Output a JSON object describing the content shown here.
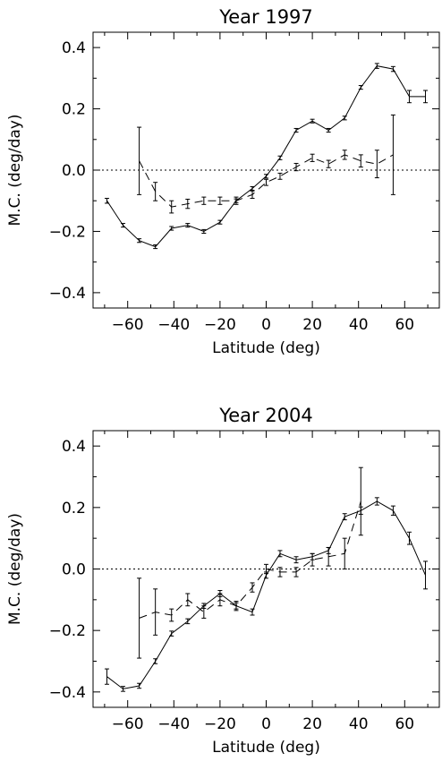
{
  "chart_data": [
    {
      "type": "line",
      "title": "Year 1997",
      "xlabel": "Latitude (deg)",
      "ylabel": "M.C. (deg/day)",
      "xlim": [
        -75,
        75
      ],
      "ylim": [
        -0.45,
        0.45
      ],
      "xticks": [
        -60,
        -40,
        -20,
        0,
        20,
        40,
        60
      ],
      "yticks": [
        -0.4,
        -0.2,
        0.0,
        0.2,
        0.4
      ],
      "xtick_labels": [
        "−60",
        "−40",
        "−20",
        "0",
        "20",
        "40",
        "60"
      ],
      "ytick_labels": [
        "−0.4",
        "−0.2",
        "0.0",
        "0.2",
        "0.4"
      ],
      "grid": false,
      "reference_line": {
        "y": 0,
        "style": "dotted"
      },
      "series": [
        {
          "style": "solid",
          "x": [
            -69,
            -62,
            -55,
            -48,
            -41,
            -34,
            -27,
            -20,
            -13,
            -6,
            0,
            6,
            13,
            20,
            27,
            34,
            41,
            48,
            55,
            62,
            69
          ],
          "y": [
            -0.1,
            -0.18,
            -0.23,
            -0.25,
            -0.19,
            -0.18,
            -0.2,
            -0.17,
            -0.1,
            -0.06,
            -0.02,
            0.04,
            0.13,
            0.16,
            0.13,
            0.17,
            0.27,
            0.34,
            0.33,
            0.24,
            0.24
          ],
          "err": [
            0.008,
            0.006,
            0.006,
            0.006,
            0.006,
            0.006,
            0.006,
            0.006,
            0.006,
            0.006,
            0.006,
            0.006,
            0.006,
            0.006,
            0.006,
            0.006,
            0.006,
            0.008,
            0.008,
            0.02,
            0.02
          ]
        },
        {
          "style": "dashed",
          "x": [
            -55,
            -48,
            -41,
            -34,
            -27,
            -20,
            -13,
            -6,
            0,
            6,
            13,
            20,
            27,
            34,
            41,
            48,
            55
          ],
          "y": [
            0.03,
            -0.07,
            -0.12,
            -0.11,
            -0.1,
            -0.1,
            -0.1,
            -0.08,
            -0.04,
            -0.02,
            0.01,
            0.04,
            0.02,
            0.05,
            0.03,
            0.02,
            0.05
          ],
          "err": [
            0.11,
            0.03,
            0.02,
            0.015,
            0.012,
            0.012,
            0.012,
            0.012,
            0.01,
            0.01,
            0.012,
            0.012,
            0.012,
            0.015,
            0.02,
            0.045,
            0.13
          ]
        }
      ]
    },
    {
      "type": "line",
      "title": "Year 2004",
      "xlabel": "Latitude (deg)",
      "ylabel": "M.C. (deg/day)",
      "xlim": [
        -75,
        75
      ],
      "ylim": [
        -0.45,
        0.45
      ],
      "xticks": [
        -60,
        -40,
        -20,
        0,
        20,
        40,
        60
      ],
      "yticks": [
        -0.4,
        -0.2,
        0.0,
        0.2,
        0.4
      ],
      "xtick_labels": [
        "−60",
        "−40",
        "−20",
        "0",
        "20",
        "40",
        "60"
      ],
      "ytick_labels": [
        "−0.4",
        "−0.2",
        "0.0",
        "0.2",
        "0.4"
      ],
      "grid": false,
      "reference_line": {
        "y": 0,
        "style": "dotted"
      },
      "series": [
        {
          "style": "solid",
          "x": [
            -69,
            -62,
            -55,
            -48,
            -41,
            -34,
            -27,
            -20,
            -13,
            -6,
            0,
            6,
            13,
            20,
            27,
            34,
            41,
            48,
            55,
            62,
            69
          ],
          "y": [
            -0.35,
            -0.39,
            -0.38,
            -0.3,
            -0.21,
            -0.17,
            -0.12,
            -0.08,
            -0.12,
            -0.14,
            -0.02,
            0.05,
            0.03,
            0.04,
            0.06,
            0.17,
            0.19,
            0.22,
            0.19,
            0.1,
            -0.02
          ],
          "err": [
            0.025,
            0.008,
            0.008,
            0.008,
            0.008,
            0.008,
            0.008,
            0.01,
            0.01,
            0.01,
            0.01,
            0.01,
            0.01,
            0.01,
            0.01,
            0.01,
            0.012,
            0.012,
            0.015,
            0.02,
            0.045
          ]
        },
        {
          "style": "dashed",
          "x": [
            -55,
            -48,
            -41,
            -34,
            -27,
            -20,
            -13,
            -6,
            0,
            6,
            13,
            20,
            27,
            34,
            41
          ],
          "y": [
            -0.16,
            -0.14,
            -0.15,
            -0.1,
            -0.14,
            -0.1,
            -0.12,
            -0.06,
            0.0,
            -0.01,
            -0.01,
            0.03,
            0.04,
            0.05,
            0.22
          ],
          "err": [
            0.13,
            0.075,
            0.02,
            0.02,
            0.02,
            0.02,
            0.015,
            0.015,
            0.015,
            0.015,
            0.015,
            0.02,
            0.03,
            0.05,
            0.11
          ]
        }
      ]
    }
  ]
}
